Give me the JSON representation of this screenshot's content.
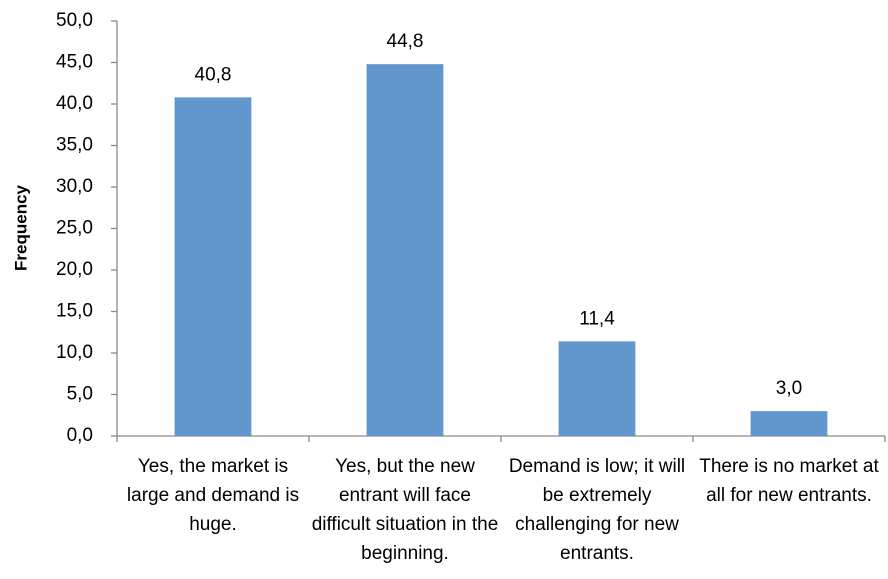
{
  "chart_data": {
    "type": "bar",
    "y_label": "Frequency",
    "categories": [
      "Yes, the market is large and demand is huge.",
      "Yes, but the new entrant will face difficult situation in the beginning.",
      "Demand is low; it will be extremely challenging for new entrants.",
      "There is no market at all for new entrants."
    ],
    "values": [
      40.8,
      44.8,
      11.4,
      3.0
    ],
    "value_labels": [
      "40,8",
      "44,8",
      "11,4",
      "3,0"
    ],
    "color": "#6197cd",
    "ylim": [
      0,
      50
    ],
    "yticks": [
      {
        "value": 0,
        "label": "0,0"
      },
      {
        "value": 5,
        "label": "5,0"
      },
      {
        "value": 10,
        "label": "10,0"
      },
      {
        "value": 15,
        "label": "15,0"
      },
      {
        "value": 20,
        "label": "20,0"
      },
      {
        "value": 25,
        "label": "25,0"
      },
      {
        "value": 30,
        "label": "30,0"
      },
      {
        "value": 35,
        "label": "35,0"
      },
      {
        "value": 40,
        "label": "40,0"
      },
      {
        "value": 45,
        "label": "45,0"
      },
      {
        "value": 50,
        "label": "50,0"
      }
    ],
    "grid": false
  }
}
